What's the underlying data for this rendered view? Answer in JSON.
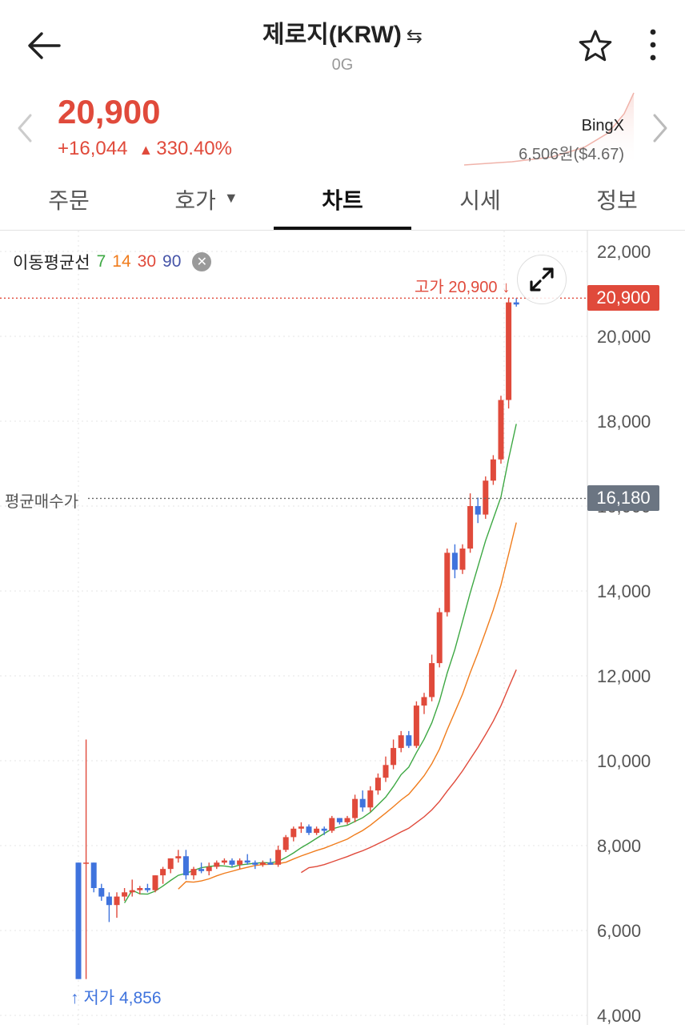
{
  "header": {
    "title": "제로지(KRW)",
    "swap_icon": "⇆",
    "subtitle": "0G"
  },
  "price": {
    "current": "20,900",
    "change_abs": "+16,044",
    "change_pct": "330.40%",
    "exchange_name": "BingX",
    "exchange_price": "6,506원",
    "exchange_usd": "($4.67)",
    "color_up": "#e04a3b"
  },
  "tabs": [
    {
      "label": "주문"
    },
    {
      "label": "호가"
    },
    {
      "label": "차트"
    },
    {
      "label": "시세"
    },
    {
      "label": "정보"
    }
  ],
  "chart_labels": {
    "legend_title": "이동평균선",
    "ma": [
      {
        "period": "7",
        "color": "#3da843"
      },
      {
        "period": "14",
        "color": "#f07c1c"
      },
      {
        "period": "30",
        "color": "#e04a3b"
      },
      {
        "period": "90",
        "color": "#4654a8"
      }
    ],
    "high_label": "고가 20,900",
    "low_label": "저가 4,856",
    "avg_buy_label": "평균매수가",
    "current_badge": "20,900",
    "avg_badge": "16,180"
  },
  "chart_data": {
    "type": "candlestick",
    "ylim": [
      4000,
      22000
    ],
    "y_ticks": [
      "22,000",
      "20,000",
      "18,000",
      "16,000",
      "14,000",
      "12,000",
      "10,000",
      "8,000",
      "6,000",
      "4,000"
    ],
    "high": 20900,
    "low": 4856,
    "current": 20900,
    "avg_buy": 16180,
    "up_color": "#e04a3b",
    "down_color": "#3f73dd",
    "candles": [
      [
        7600,
        7600,
        4856,
        4856
      ],
      [
        7600,
        10500,
        4856,
        7600
      ],
      [
        7600,
        7600,
        6900,
        7000
      ],
      [
        7000,
        7100,
        6700,
        6800
      ],
      [
        6800,
        6900,
        6200,
        6600
      ],
      [
        6600,
        6900,
        6300,
        6800
      ],
      [
        6800,
        7000,
        6700,
        6900
      ],
      [
        6900,
        7200,
        6800,
        6950
      ],
      [
        6950,
        7050,
        6850,
        7000
      ],
      [
        7000,
        7100,
        6900,
        6950
      ],
      [
        6950,
        7300,
        6900,
        7300
      ],
      [
        7300,
        7500,
        7100,
        7450
      ],
      [
        7450,
        7700,
        7350,
        7700
      ],
      [
        7700,
        7900,
        7600,
        7750
      ],
      [
        7750,
        7900,
        7200,
        7300
      ],
      [
        7300,
        7500,
        7200,
        7450
      ],
      [
        7450,
        7600,
        7350,
        7400
      ],
      [
        7400,
        7600,
        7300,
        7500
      ],
      [
        7500,
        7650,
        7450,
        7600
      ],
      [
        7600,
        7700,
        7550,
        7650
      ],
      [
        7650,
        7700,
        7500,
        7550
      ],
      [
        7550,
        7700,
        7450,
        7650
      ],
      [
        7650,
        7800,
        7550,
        7600
      ],
      [
        7600,
        7650,
        7450,
        7550
      ],
      [
        7550,
        7650,
        7500,
        7600
      ],
      [
        7600,
        7700,
        7550,
        7550
      ],
      [
        7550,
        8000,
        7500,
        7900
      ],
      [
        7900,
        8250,
        7850,
        8200
      ],
      [
        8200,
        8450,
        8100,
        8400
      ],
      [
        8400,
        8550,
        8300,
        8450
      ],
      [
        8450,
        8500,
        8250,
        8300
      ],
      [
        8300,
        8450,
        8250,
        8400
      ],
      [
        8400,
        8450,
        8250,
        8350
      ],
      [
        8350,
        8700,
        8300,
        8650
      ],
      [
        8650,
        8650,
        8500,
        8550
      ],
      [
        8550,
        8700,
        8500,
        8650
      ],
      [
        8650,
        9200,
        8550,
        9100
      ],
      [
        9100,
        9300,
        8800,
        8900
      ],
      [
        8900,
        9400,
        8800,
        9300
      ],
      [
        9300,
        9700,
        9200,
        9600
      ],
      [
        9600,
        10100,
        9500,
        9900
      ],
      [
        9900,
        10500,
        9800,
        10300
      ],
      [
        10300,
        10700,
        10200,
        10600
      ],
      [
        10600,
        10700,
        10300,
        10350
      ],
      [
        10350,
        11400,
        10300,
        11300
      ],
      [
        11300,
        11600,
        11100,
        11500
      ],
      [
        11500,
        12500,
        11400,
        12300
      ],
      [
        12300,
        13600,
        12200,
        13500
      ],
      [
        13500,
        15000,
        13400,
        14900
      ],
      [
        14900,
        15100,
        14300,
        14500
      ],
      [
        14500,
        15100,
        14400,
        15000
      ],
      [
        15000,
        16300,
        14900,
        16000
      ],
      [
        16000,
        16200,
        15600,
        15800
      ],
      [
        15800,
        16700,
        15700,
        16600
      ],
      [
        16600,
        17200,
        16500,
        17100
      ],
      [
        17100,
        18600,
        17000,
        18500
      ],
      [
        18500,
        20900,
        18300,
        20800
      ],
      [
        20800,
        20900,
        20700,
        20750
      ]
    ]
  }
}
